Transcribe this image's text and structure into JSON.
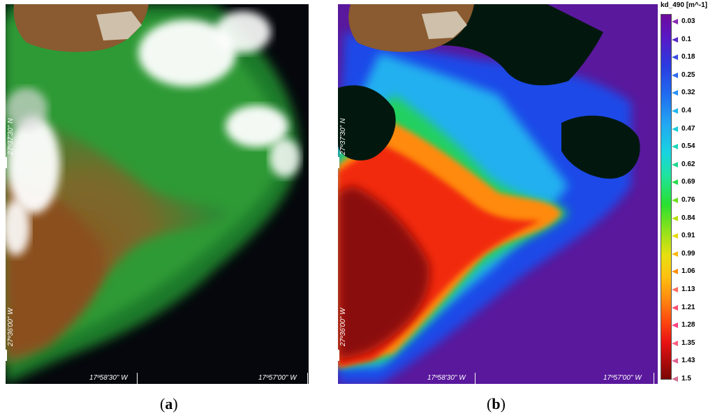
{
  "panel_a": {
    "caption_open": "(",
    "caption_letter": "a",
    "caption_close": ")",
    "lat_top": "27º37'30\" N",
    "lat_bottom": "27º36'00\" W",
    "lon_left": "17º58'30\" W",
    "lon_right": "17º57'00\" W"
  },
  "panel_b": {
    "caption_open": "(",
    "caption_letter": "b",
    "caption_close": ")",
    "lat_top": "27º37'30\" N",
    "lat_bottom": "27º36'00\" W",
    "lon_left": "17º58'30\" W",
    "lon_right": "17º57'00\" W"
  },
  "colorbar": {
    "title": "kd_490 [m^-1]",
    "labels": [
      "0.03",
      "0.1",
      "0.18",
      "0.25",
      "0.32",
      "0.4",
      "0.47",
      "0.54",
      "0.62",
      "0.69",
      "0.76",
      "0.84",
      "0.91",
      "0.99",
      "1.06",
      "1.13",
      "1.21",
      "1.28",
      "1.35",
      "1.43",
      "1.5"
    ],
    "marker_colors": [
      "#8a2bb0",
      "#5a2bc8",
      "#3a4de0",
      "#2c6cf0",
      "#2a92f4",
      "#22b4f0",
      "#20ccd8",
      "#1ed8b8",
      "#20d890",
      "#28dc50",
      "#70e020",
      "#b8e012",
      "#e8d810",
      "#ffb810",
      "#ff9010",
      "#ff7060",
      "#ff5070",
      "#ff4080",
      "#ff6080",
      "#e06090",
      "#d07090"
    ]
  }
}
